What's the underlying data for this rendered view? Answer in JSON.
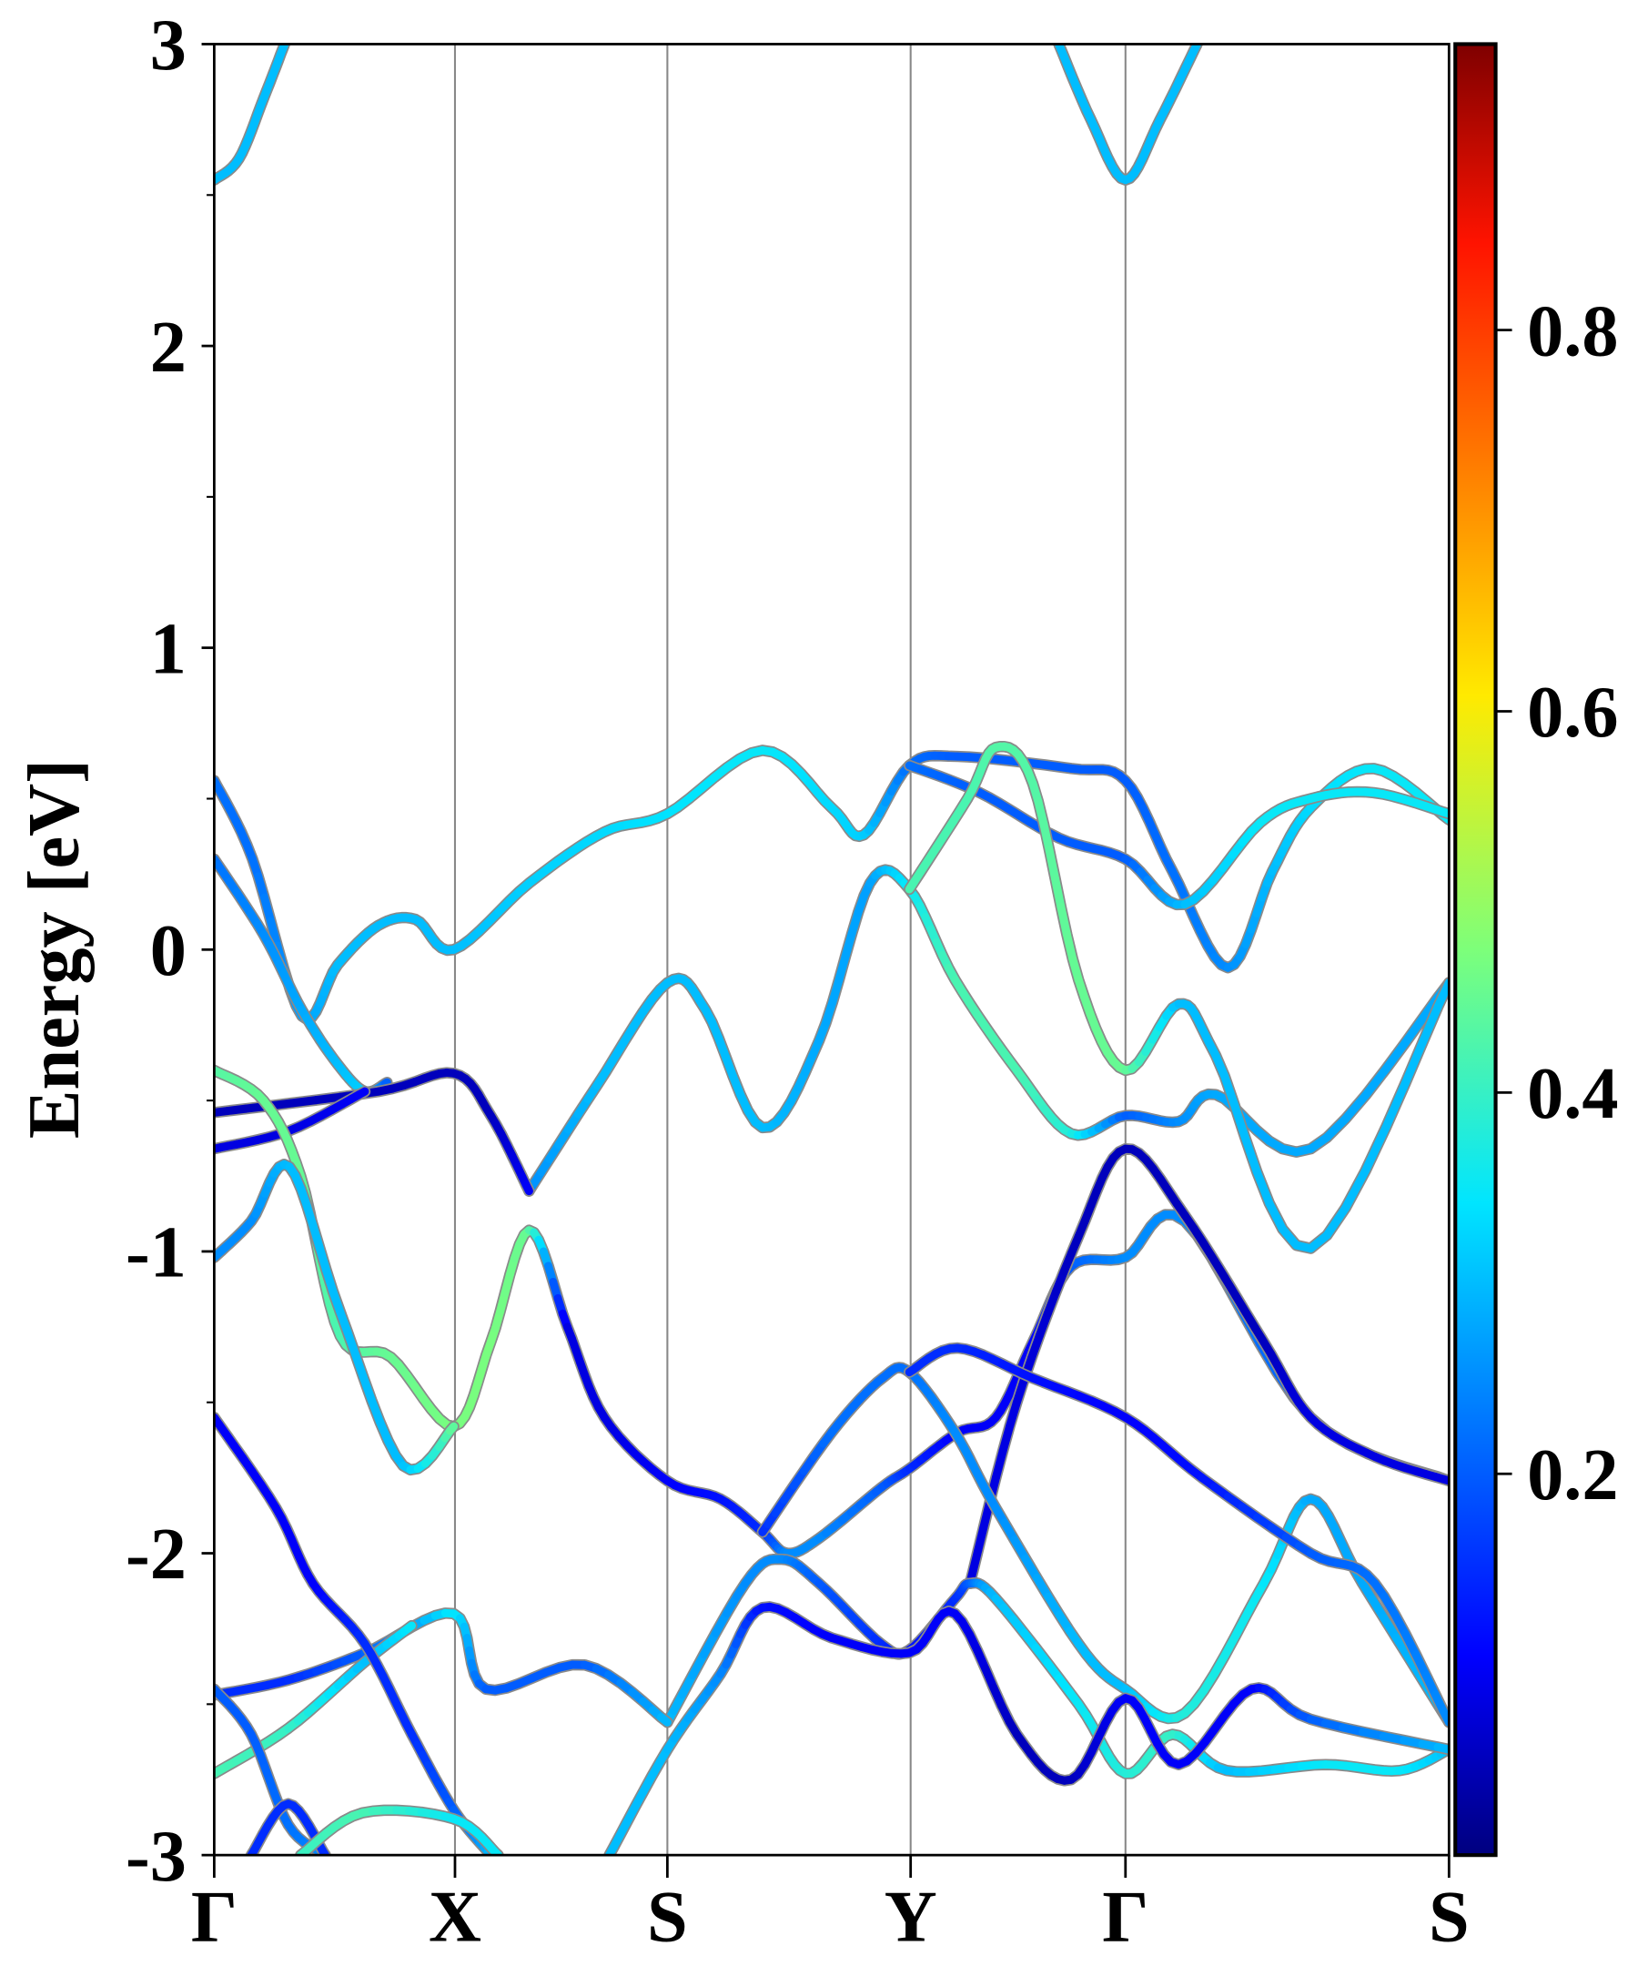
{
  "chart_data": {
    "type": "line",
    "title": "",
    "xlabel": "",
    "ylabel": "Energy [eV]",
    "ylim": [
      -3,
      3
    ],
    "xlim": [
      0,
      1
    ],
    "yticks": [
      {
        "value": 3,
        "label": "3"
      },
      {
        "value": 2,
        "label": "2"
      },
      {
        "value": 1,
        "label": "1"
      },
      {
        "value": 0,
        "label": "0"
      },
      {
        "value": -1,
        "label": "-1"
      },
      {
        "value": -2,
        "label": "-2"
      },
      {
        "value": -3,
        "label": "-3"
      }
    ],
    "yminor": [
      2.5,
      1.5,
      0.5,
      -0.5,
      -1.5,
      -2.5
    ],
    "kpoints": [
      {
        "k": 0,
        "label": "Γ"
      },
      {
        "k": 0.195,
        "label": "X"
      },
      {
        "k": 0.367,
        "label": "S"
      },
      {
        "k": 0.564,
        "label": "Y"
      },
      {
        "k": 0.738,
        "label": "Γ"
      },
      {
        "k": 1.0,
        "label": "S"
      }
    ],
    "colorbar": {
      "range": [
        0,
        0.95
      ],
      "colormap": "jet",
      "ticks": [
        {
          "value": 0.2,
          "label": "0.2"
        },
        {
          "value": 0.4,
          "label": "0.4"
        },
        {
          "value": 0.6,
          "label": "0.6"
        },
        {
          "value": 0.8,
          "label": "0.8"
        }
      ]
    },
    "point_format": "[k, energy_eV, weight]",
    "bands": [
      [
        [
          0,
          2.55,
          0.3
        ],
        [
          0.02,
          2.62,
          0.3
        ],
        [
          0.04,
          2.82,
          0.3
        ],
        [
          0.057,
          3.0,
          0.3
        ]
      ],
      [
        [
          0.684,
          3.0,
          0.3
        ],
        [
          0.71,
          2.75,
          0.3
        ],
        [
          0.738,
          2.55,
          0.3
        ],
        [
          0.766,
          2.75,
          0.3
        ],
        [
          0.796,
          3.0,
          0.3
        ]
      ],
      [
        [
          0,
          0.56,
          0.22
        ],
        [
          0.031,
          0.3,
          0.22
        ],
        [
          0.071,
          -0.22,
          0.27
        ],
        [
          0.1,
          -0.05,
          0.3
        ],
        [
          0.133,
          0.08,
          0.3
        ],
        [
          0.163,
          0.1,
          0.3
        ],
        [
          0.194,
          0,
          0.3
        ],
        [
          0.255,
          0.22,
          0.32
        ],
        [
          0.316,
          0.39,
          0.33
        ],
        [
          0.367,
          0.45,
          0.34
        ],
        [
          0.444,
          0.66,
          0.35
        ],
        [
          0.5,
          0.47,
          0.33
        ],
        [
          0.526,
          0.38,
          0.32
        ],
        [
          0.563,
          0.61,
          0.22
        ],
        [
          0.602,
          0.64,
          0.2
        ],
        [
          0.694,
          0.6,
          0.2
        ],
        [
          0.738,
          0.56,
          0.2
        ],
        [
          0.776,
          0.26,
          0.22
        ],
        [
          0.821,
          -0.06,
          0.25
        ],
        [
          0.857,
          0.26,
          0.3
        ],
        [
          0.888,
          0.47,
          0.33
        ],
        [
          0.939,
          0.6,
          0.35
        ],
        [
          1,
          0.43,
          0.35
        ]
      ],
      [
        [
          0,
          0.3,
          0.22
        ],
        [
          0.04,
          0.05,
          0.25
        ],
        [
          0.071,
          -0.2,
          0.28
        ],
        [
          0.1,
          -0.38,
          0.3
        ],
        [
          0.122,
          -0.47,
          0.32
        ],
        [
          0.14,
          -0.44,
          0.2
        ]
      ],
      [
        [
          0.563,
          0.61,
          0.22
        ],
        [
          0.62,
          0.52,
          0.2
        ],
        [
          0.684,
          0.37,
          0.2
        ],
        [
          0.738,
          0.3,
          0.2
        ],
        [
          0.786,
          0.15,
          0.3
        ],
        [
          0.847,
          0.42,
          0.35
        ],
        [
          0.888,
          0.5,
          0.35
        ],
        [
          0.939,
          0.52,
          0.35
        ],
        [
          1,
          0.45,
          0.35
        ]
      ],
      [
        [
          0.255,
          -0.8,
          0.25
        ],
        [
          0.31,
          -0.45,
          0.3
        ],
        [
          0.367,
          -0.11,
          0.3
        ],
        [
          0.398,
          -0.2,
          0.3
        ],
        [
          0.444,
          -0.59,
          0.3
        ],
        [
          0.49,
          -0.3,
          0.28
        ],
        [
          0.531,
          0.22,
          0.27
        ],
        [
          0.563,
          0.2,
          0.35
        ],
        [
          0.6,
          -0.1,
          0.42
        ],
        [
          0.65,
          -0.4,
          0.42
        ],
        [
          0.694,
          -0.61,
          0.38
        ],
        [
          0.738,
          -0.55,
          0.2
        ],
        [
          0.781,
          -0.57,
          0.25
        ],
        [
          0.811,
          -0.48,
          0.28
        ],
        [
          0.888,
          -0.66,
          0.28
        ],
        [
          1,
          -0.11,
          0.28
        ]
      ],
      [
        [
          0.563,
          0.2,
          0.42
        ],
        [
          0.61,
          0.5,
          0.42
        ],
        [
          0.633,
          0.67,
          0.43
        ],
        [
          0.663,
          0.55,
          0.43
        ],
        [
          0.7,
          -0.1,
          0.45
        ],
        [
          0.738,
          -0.4,
          0.45
        ],
        [
          0.781,
          -0.18,
          0.3
        ],
        [
          0.811,
          -0.35,
          0.3
        ],
        [
          0.888,
          -0.99,
          0.3
        ],
        [
          1,
          -0.11,
          0.3
        ]
      ],
      [
        [
          0,
          -0.54,
          0.05
        ],
        [
          0.133,
          -0.47,
          0.05
        ],
        [
          0.194,
          -0.41,
          0.05
        ],
        [
          0.224,
          -0.55,
          0.05
        ],
        [
          0.255,
          -0.8,
          0.1
        ]
      ],
      [
        [
          0,
          -0.66,
          0.08
        ],
        [
          0.061,
          -0.6,
          0.08
        ],
        [
          0.122,
          -0.47,
          0.1
        ]
      ],
      [
        [
          0,
          -0.4,
          0.43
        ],
        [
          0.04,
          -0.5,
          0.45
        ],
        [
          0.07,
          -0.75,
          0.45
        ],
        [
          0.102,
          -1.28,
          0.42
        ],
        [
          0.143,
          -1.35,
          0.45
        ],
        [
          0.194,
          -1.58,
          0.47
        ],
        [
          0.224,
          -1.3,
          0.47
        ],
        [
          0.255,
          -0.93,
          0.45
        ],
        [
          0.286,
          -1.25,
          0.08
        ],
        [
          0.316,
          -1.55,
          0.08
        ],
        [
          0.367,
          -1.76,
          0.1
        ],
        [
          0.41,
          -1.82,
          0.12
        ],
        [
          0.444,
          -1.93,
          0.15
        ],
        [
          0.464,
          -2.0,
          0.25
        ],
        [
          0.49,
          -1.95,
          0.25
        ],
        [
          0.541,
          -1.78,
          0.2
        ],
        [
          0.563,
          -1.72,
          0.15
        ],
        [
          0.602,
          -1.6,
          0.1
        ],
        [
          0.633,
          -1.55,
          0.1
        ],
        [
          0.663,
          -1.3,
          0.1
        ],
        [
          0.694,
          -1.05,
          0.2
        ],
        [
          0.738,
          -1.02,
          0.25
        ],
        [
          0.786,
          -0.9,
          0.25
        ],
        [
          0.888,
          -1.55,
          0.2
        ],
        [
          1,
          -1.76,
          0.08
        ]
      ],
      [
        [
          0,
          -1.02,
          0.25
        ],
        [
          0.03,
          -0.9,
          0.25
        ],
        [
          0.061,
          -0.72,
          0.3
        ],
        [
          0.102,
          -1.2,
          0.3
        ],
        [
          0.153,
          -1.71,
          0.3
        ],
        [
          0.194,
          -1.58,
          0.45
        ]
      ],
      [
        [
          0.612,
          -2.1,
          0.08
        ],
        [
          0.65,
          -1.5,
          0.08
        ],
        [
          0.7,
          -0.95,
          0.05
        ],
        [
          0.738,
          -0.66,
          0.05
        ],
        [
          0.786,
          -0.88,
          0.05
        ],
        [
          0.85,
          -1.3,
          0.05
        ],
        [
          0.888,
          -1.55,
          0.08
        ],
        [
          0.94,
          -1.68,
          0.08
        ],
        [
          1,
          -1.76,
          0.08
        ]
      ],
      [
        [
          0.444,
          -1.93,
          0.15
        ],
        [
          0.5,
          -1.6,
          0.22
        ],
        [
          0.541,
          -1.42,
          0.22
        ],
        [
          0.563,
          -1.4,
          0.22
        ],
        [
          0.6,
          -1.6,
          0.25
        ],
        [
          0.633,
          -1.85,
          0.25
        ],
        [
          0.7,
          -2.3,
          0.3
        ],
        [
          0.738,
          -2.45,
          0.3
        ],
        [
          0.786,
          -2.53,
          0.38
        ],
        [
          0.85,
          -2.1,
          0.35
        ],
        [
          0.888,
          -1.82,
          0.28
        ],
        [
          0.93,
          -2.1,
          0.28
        ],
        [
          1,
          -2.56,
          0.3
        ]
      ],
      [
        [
          0.563,
          -1.4,
          0.15
        ],
        [
          0.602,
          -1.32,
          0.15
        ],
        [
          0.663,
          -1.42,
          0.12
        ],
        [
          0.738,
          -1.55,
          0.1
        ],
        [
          0.8,
          -1.75,
          0.12
        ],
        [
          0.888,
          -2.0,
          0.2
        ],
        [
          0.94,
          -2.1,
          0.22
        ],
        [
          1,
          -2.56,
          0.25
        ]
      ],
      [
        [
          0.367,
          -2.56,
          0.3
        ],
        [
          0.43,
          -2.1,
          0.25
        ],
        [
          0.46,
          -2.02,
          0.25
        ],
        [
          0.49,
          -2.1,
          0.2
        ],
        [
          0.54,
          -2.3,
          0.15
        ],
        [
          0.563,
          -2.32,
          0.12
        ],
        [
          0.6,
          -2.15,
          0.15
        ],
        [
          0.612,
          -2.1,
          0.2
        ],
        [
          0.633,
          -2.15,
          0.3
        ],
        [
          0.7,
          -2.5,
          0.35
        ],
        [
          0.738,
          -2.73,
          0.38
        ],
        [
          0.776,
          -2.6,
          0.4
        ],
        [
          0.82,
          -2.72,
          0.3
        ],
        [
          0.9,
          -2.7,
          0.35
        ],
        [
          0.96,
          -2.72,
          0.35
        ],
        [
          1,
          -2.65,
          0.3
        ]
      ],
      [
        [
          0.32,
          -3.0,
          0.3
        ],
        [
          0.367,
          -2.65,
          0.3
        ],
        [
          0.41,
          -2.4,
          0.25
        ],
        [
          0.444,
          -2.18,
          0.12
        ],
        [
          0.5,
          -2.28,
          0.1
        ],
        [
          0.563,
          -2.33,
          0.1
        ],
        [
          0.6,
          -2.2,
          0.1
        ],
        [
          0.65,
          -2.6,
          0.05
        ],
        [
          0.694,
          -2.75,
          0.05
        ],
        [
          0.738,
          -2.48,
          0.1
        ],
        [
          0.781,
          -2.7,
          0.1
        ],
        [
          0.84,
          -2.45,
          0.1
        ],
        [
          0.888,
          -2.55,
          0.2
        ],
        [
          1,
          -2.65,
          0.3
        ]
      ],
      [
        [
          0,
          -2.47,
          0.15
        ],
        [
          0.06,
          -2.42,
          0.15
        ],
        [
          0.122,
          -2.33,
          0.2
        ],
        [
          0.194,
          -2.2,
          0.35
        ],
        [
          0.22,
          -2.45,
          0.2
        ],
        [
          0.3,
          -2.37,
          0.2
        ],
        [
          0.367,
          -2.56,
          0.3
        ]
      ],
      [
        [
          0,
          -2.73,
          0.42
        ],
        [
          0.06,
          -2.58,
          0.4
        ],
        [
          0.122,
          -2.36,
          0.3
        ],
        [
          0.16,
          -2.24,
          0.35
        ]
      ],
      [
        [
          0,
          -1.55,
          0.1
        ],
        [
          0.05,
          -1.85,
          0.1
        ],
        [
          0.08,
          -2.1,
          0.1
        ],
        [
          0.122,
          -2.3,
          0.15
        ],
        [
          0.16,
          -2.6,
          0.15
        ],
        [
          0.194,
          -2.85,
          0.2
        ],
        [
          0.224,
          -3.0,
          0.3
        ]
      ],
      [
        [
          0,
          -2.45,
          0.2
        ],
        [
          0.03,
          -2.6,
          0.2
        ],
        [
          0.06,
          -2.9,
          0.22
        ],
        [
          0.09,
          -3.0,
          0.25
        ]
      ],
      [
        [
          0.03,
          -3.0,
          0.15
        ],
        [
          0.06,
          -2.83,
          0.15
        ],
        [
          0.09,
          -3.0,
          0.15
        ]
      ],
      [
        [
          0.07,
          -3.0,
          0.4
        ],
        [
          0.12,
          -2.86,
          0.42
        ],
        [
          0.194,
          -2.88,
          0.35
        ],
        [
          0.23,
          -3.0,
          0.35
        ]
      ]
    ]
  }
}
